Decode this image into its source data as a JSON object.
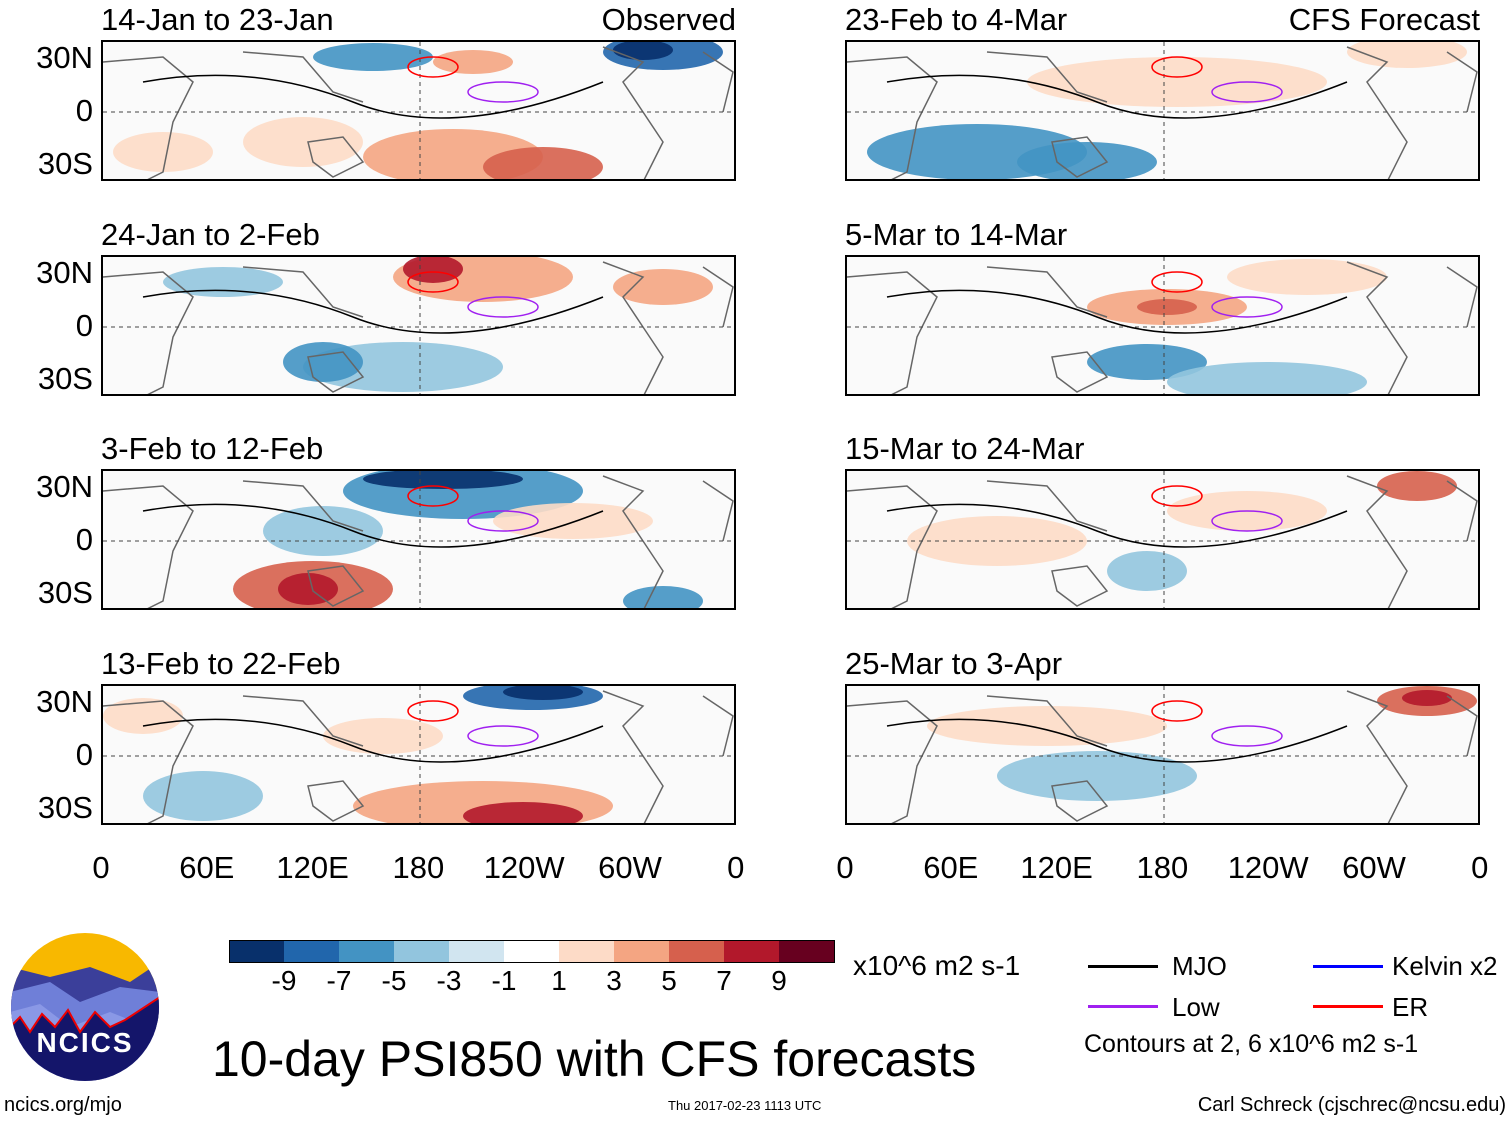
{
  "panels": [
    {
      "title": "14-Jan to 23-Jan",
      "tag": "Observed"
    },
    {
      "title": "24-Jan to 2-Feb",
      "tag": ""
    },
    {
      "title": "3-Feb to 12-Feb",
      "tag": ""
    },
    {
      "title": "13-Feb to 22-Feb",
      "tag": ""
    },
    {
      "title": "23-Feb to 4-Mar",
      "tag": "CFS Forecast"
    },
    {
      "title": "5-Mar to 14-Mar",
      "tag": ""
    },
    {
      "title": "15-Mar to 24-Mar",
      "tag": ""
    },
    {
      "title": "25-Mar to 3-Apr",
      "tag": ""
    }
  ],
  "lat_labels": [
    "30N",
    "0",
    "30S"
  ],
  "lon_labels": [
    "0",
    "60E",
    "120E",
    "180",
    "120W",
    "60W",
    "0"
  ],
  "colorbar": {
    "colors": [
      "#08306b",
      "#2166ac",
      "#4393c3",
      "#92c5de",
      "#d1e5f0",
      "#ffffff",
      "#fddbc7",
      "#f4a582",
      "#d6604d",
      "#b2182b",
      "#67001f"
    ],
    "labels": [
      "-9",
      "-7",
      "-5",
      "-3",
      "-1",
      "1",
      "3",
      "5",
      "7",
      "9"
    ],
    "units": "x10^6 m2 s-1"
  },
  "legend": {
    "items": [
      {
        "label": "MJO",
        "color": "#000000"
      },
      {
        "label": "Kelvin x2",
        "color": "#0000ff"
      },
      {
        "label": "Low",
        "color": "#a020f0"
      },
      {
        "label": "ER",
        "color": "#ff0000"
      }
    ],
    "note": "Contours at 2, 6 x10^6 m2 s-1"
  },
  "title": "10-day PSI850 with CFS forecasts",
  "logo_text": "NCICS",
  "footer": {
    "url": "ncics.org/mjo",
    "timestamp": "Thu 2017-02-23 1113 UTC",
    "author": "Carl Schreck (cjschrec@ncsu.edu)"
  }
}
